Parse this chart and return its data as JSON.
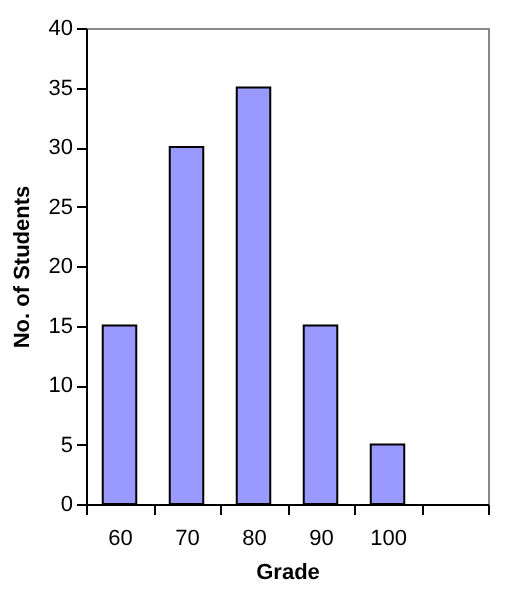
{
  "chart_data": {
    "type": "bar",
    "xlabel": "Grade",
    "ylabel": "No. of Students",
    "categories": [
      "60",
      "70",
      "80",
      "90",
      "100",
      null
    ],
    "values": [
      15,
      30,
      35,
      15,
      5,
      null
    ],
    "color": "#9999ff",
    "ylim": [
      0,
      40
    ],
    "yticks": [
      0,
      5,
      10,
      15,
      20,
      25,
      30,
      35,
      40
    ],
    "grid": false
  }
}
